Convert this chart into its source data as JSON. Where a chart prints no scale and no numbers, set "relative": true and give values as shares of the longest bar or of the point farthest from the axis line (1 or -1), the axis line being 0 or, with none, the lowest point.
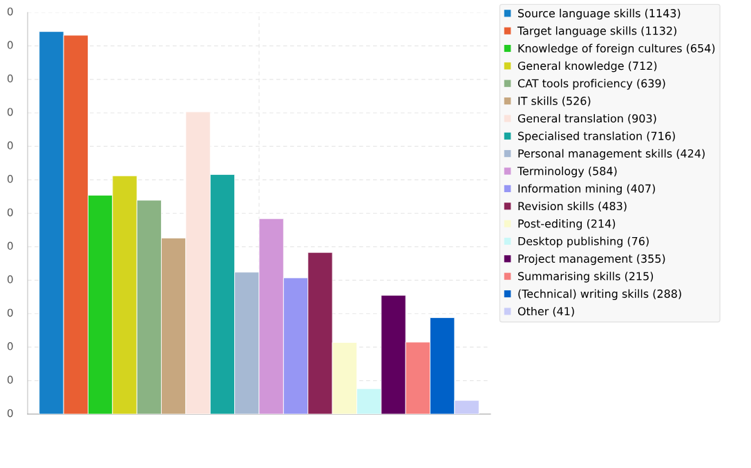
{
  "chart_data": {
    "type": "bar",
    "categories": [
      null
    ],
    "relative": true,
    "series": [
      {
        "name": "Source language skills (1143)",
        "color": "#1580c8",
        "values": [
          1
        ]
      },
      {
        "name": "Target language skills (1132)",
        "color": "#e95f33",
        "values": [
          0.9904
        ]
      },
      {
        "name": "Knowledge of foreign cultures (654)",
        "color": "#22cc22",
        "values": [
          0.5722
        ]
      },
      {
        "name": "General knowledge (712)",
        "color": "#d4d41f",
        "values": [
          0.6229
        ]
      },
      {
        "name": "CAT tools proficiency (639)",
        "color": "#8ab383",
        "values": [
          0.5591
        ]
      },
      {
        "name": "IT skills (526)",
        "color": "#c7a77f",
        "values": [
          0.4602
        ]
      },
      {
        "name": "General translation (903)",
        "color": "#fbe3dc",
        "values": [
          0.79
        ]
      },
      {
        "name": "Specialised translation (716)",
        "color": "#17a6a0",
        "values": [
          0.6264
        ]
      },
      {
        "name": "Personal management skills (424)",
        "color": "#a6b9d3",
        "values": [
          0.371
        ]
      },
      {
        "name": "Terminology (584)",
        "color": "#d196d8",
        "values": [
          0.5109
        ]
      },
      {
        "name": "Information mining (407)",
        "color": "#9696f4",
        "values": [
          0.3561
        ]
      },
      {
        "name": "Revision skills (483)",
        "color": "#8b2456",
        "values": [
          0.4226
        ]
      },
      {
        "name": "Post-editing (214)",
        "color": "#fafacc",
        "values": [
          0.1872
        ]
      },
      {
        "name": "Desktop publishing (76)",
        "color": "#c8f8f8",
        "values": [
          0.0665
        ]
      },
      {
        "name": "Project management (355)",
        "color": "#5f005f",
        "values": [
          0.3106
        ]
      },
      {
        "name": "Summarising skills (215)",
        "color": "#f67f7e",
        "values": [
          0.1881
        ]
      },
      {
        "name": "(Technical) writing skills (288)",
        "color": "#0061c8",
        "values": [
          0.252
        ]
      },
      {
        "name": "Other (41)",
        "color": "#c8cbf8",
        "values": [
          0.0359
        ]
      }
    ],
    "annotations": [
      "0",
      "0",
      "0",
      "0",
      "0",
      "0",
      "0",
      "0",
      "0",
      "0",
      "0",
      "0",
      "0"
    ],
    "grid": true,
    "legend": "right"
  }
}
